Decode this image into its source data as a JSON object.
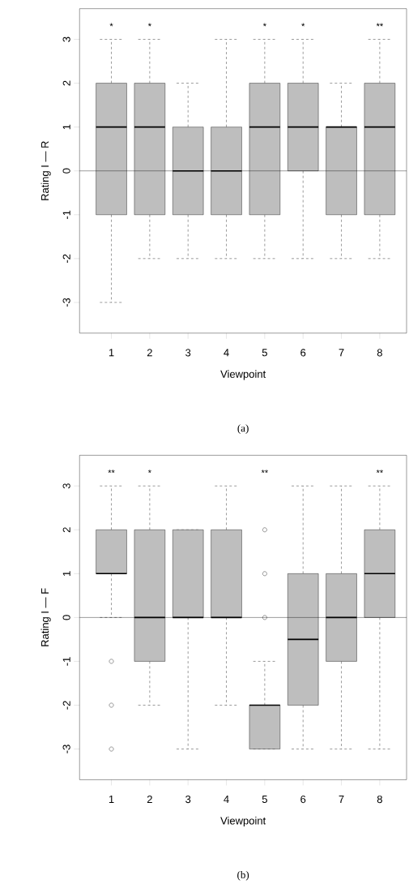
{
  "chart_data": [
    {
      "type": "box",
      "xlabel": "Viewpoint",
      "ylabel": "Rating I — R",
      "categories": [
        "1",
        "2",
        "3",
        "4",
        "5",
        "6",
        "7",
        "8"
      ],
      "color": "#bebebe",
      "ylim": [
        -3.7,
        3.7
      ],
      "yticks": [
        -3,
        -2,
        -1,
        0,
        1,
        2,
        3
      ],
      "boxes": [
        {
          "low": -3,
          "q1": -1,
          "median": 1,
          "q3": 2,
          "high": 3
        },
        {
          "low": -2,
          "q1": -1,
          "median": 1,
          "q3": 2,
          "high": 3
        },
        {
          "low": -2,
          "q1": -1,
          "median": 0,
          "q3": 1,
          "high": 2
        },
        {
          "low": -2,
          "q1": -1,
          "median": 0,
          "q3": 1,
          "high": 3
        },
        {
          "low": -2,
          "q1": -1,
          "median": 1,
          "q3": 2,
          "high": 3
        },
        {
          "low": -2,
          "q1": 0,
          "median": 1,
          "q3": 2,
          "high": 3
        },
        {
          "low": -2,
          "q1": -1,
          "median": 1,
          "q3": 1,
          "high": 2
        },
        {
          "low": -2,
          "q1": -1,
          "median": 1,
          "q3": 2,
          "high": 3
        }
      ],
      "ref_lines": [
        {
          "axis": "y",
          "value": 0
        }
      ],
      "annotations": [
        "*",
        "*",
        "*",
        "*",
        "**",
        "(a)"
      ]
    },
    {
      "type": "box",
      "xlabel": "Viewpoint",
      "ylabel": "Rating I — F",
      "categories": [
        "1",
        "2",
        "3",
        "4",
        "5",
        "6",
        "7",
        "8"
      ],
      "color": "#bebebe",
      "ylim": [
        -3.7,
        3.7
      ],
      "yticks": [
        -3,
        -2,
        -1,
        0,
        1,
        2,
        3
      ],
      "boxes": [
        {
          "low": 0,
          "q1": 1,
          "median": 1,
          "q3": 2,
          "high": 3,
          "outliers": [
            -1,
            -2,
            -3
          ]
        },
        {
          "low": -2,
          "q1": -1,
          "median": 0,
          "q3": 2,
          "high": 3
        },
        {
          "low": -3,
          "q1": 0,
          "median": 0,
          "q3": 2,
          "high": 2
        },
        {
          "low": -2,
          "q1": 0,
          "median": 0,
          "q3": 2,
          "high": 3
        },
        {
          "low": -3,
          "q1": -3,
          "median": -2,
          "q3": -2,
          "high": -1,
          "outliers": [
            0,
            1,
            2
          ]
        },
        {
          "low": -3,
          "q1": -2,
          "median": -0.5,
          "q3": 1,
          "high": 3
        },
        {
          "low": -3,
          "q1": -1,
          "median": 0,
          "q3": 1,
          "high": 3
        },
        {
          "low": -3,
          "q1": 0,
          "median": 1,
          "q3": 2,
          "high": 3
        }
      ],
      "ref_lines": [
        {
          "axis": "y",
          "value": 0
        }
      ],
      "annotations": [
        "**",
        "*",
        "**",
        "**",
        "(b)"
      ]
    }
  ]
}
